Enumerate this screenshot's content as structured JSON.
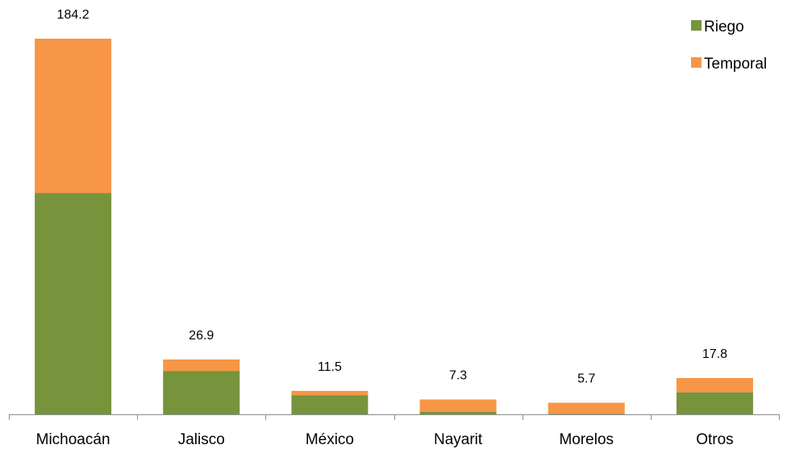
{
  "chart_data": {
    "type": "bar",
    "stacked": true,
    "categories": [
      "Michoacán",
      "Jalisco",
      "México",
      "Nayarit",
      "Morelos",
      "Otros"
    ],
    "series": [
      {
        "name": "Riego",
        "color": "#77933C",
        "values": [
          108.5,
          21.3,
          9.3,
          1.3,
          0.3,
          10.8
        ]
      },
      {
        "name": "Temporal",
        "color": "#F79646",
        "values": [
          75.7,
          5.6,
          2.2,
          6.0,
          5.4,
          7.0
        ]
      }
    ],
    "totals": [
      "184.2",
      "26.9",
      "11.5",
      "7.3",
      "5.7",
      "17.8"
    ],
    "ylim": [
      0,
      184.2
    ],
    "legend_position": "top-right",
    "grid": false
  }
}
